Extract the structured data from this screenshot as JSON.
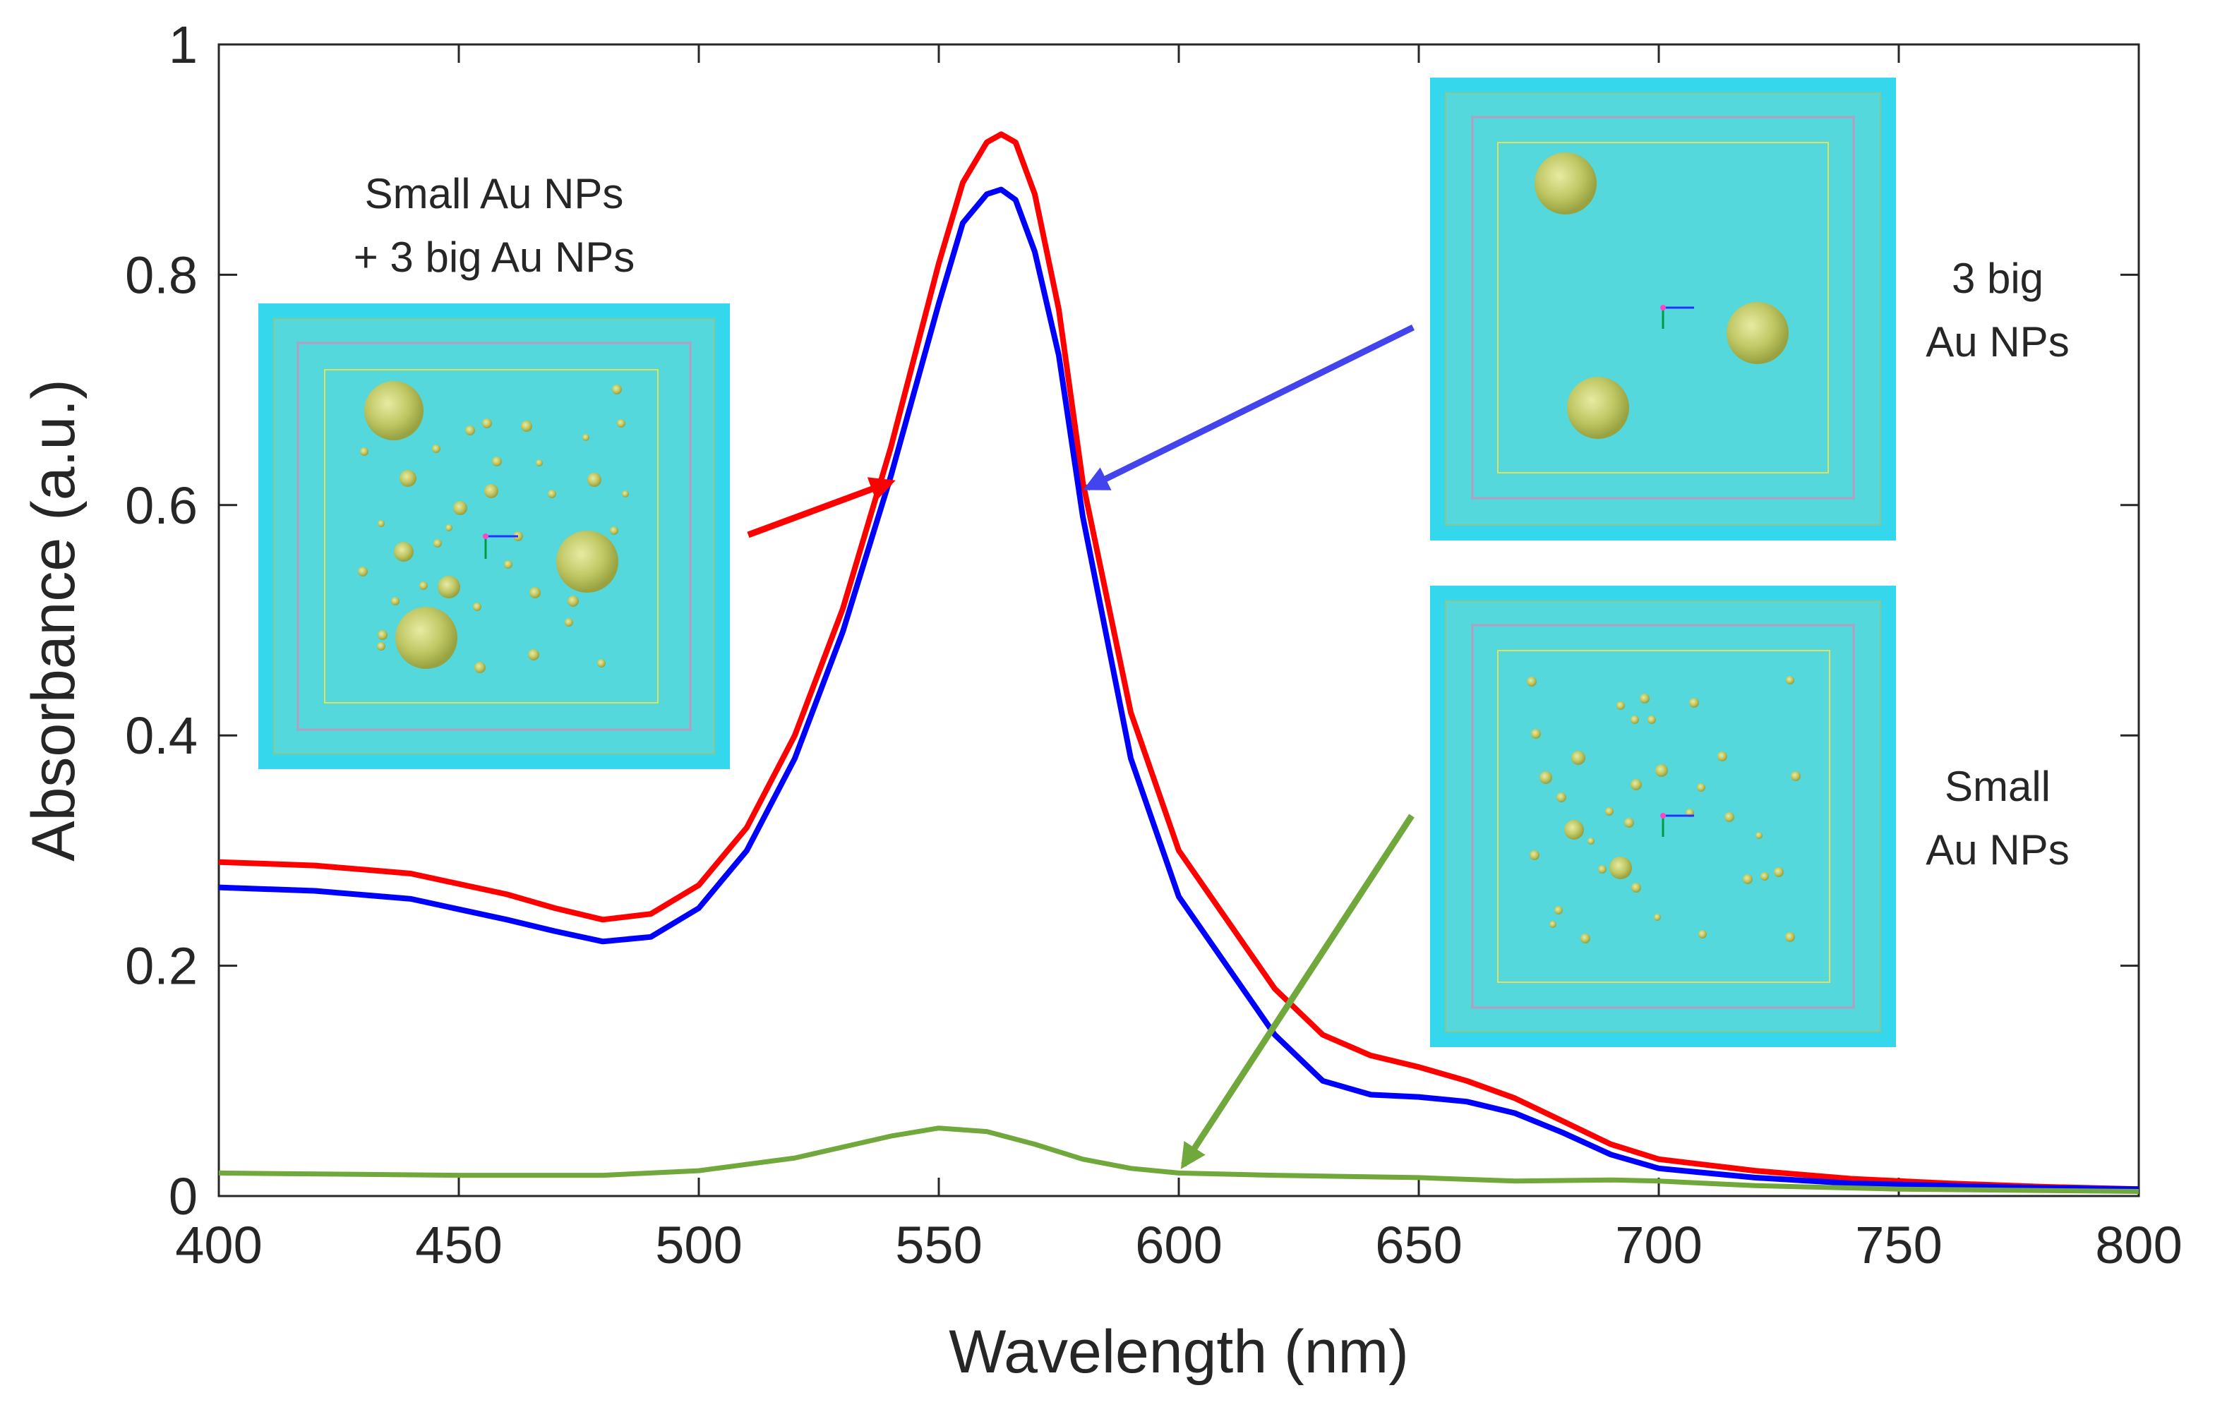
{
  "chart_data": {
    "type": "line",
    "title": "",
    "xlabel": "Wavelength (nm)",
    "ylabel": "Absorbance (a.u.)",
    "xlim": [
      400,
      800
    ],
    "ylim": [
      0,
      1
    ],
    "xticks": [
      400,
      450,
      500,
      550,
      600,
      650,
      700,
      750,
      800
    ],
    "yticks": [
      0,
      0.2,
      0.4,
      0.6,
      0.8,
      1
    ],
    "ytick_labels": [
      "0",
      "0.2",
      "0.4",
      "0.6",
      "0.8",
      "1"
    ],
    "grid": false,
    "series": [
      {
        "name": "Small Au NPs + 3 big Au NPs",
        "color": "#ff0000",
        "x": [
          400,
          420,
          440,
          460,
          470,
          480,
          490,
          500,
          510,
          520,
          530,
          540,
          550,
          555,
          560,
          563,
          566,
          570,
          575,
          580,
          590,
          600,
          610,
          620,
          630,
          640,
          650,
          660,
          670,
          680,
          690,
          700,
          720,
          740,
          760,
          780,
          800
        ],
        "y": [
          0.29,
          0.287,
          0.28,
          0.262,
          0.25,
          0.24,
          0.245,
          0.27,
          0.32,
          0.4,
          0.51,
          0.65,
          0.81,
          0.88,
          0.915,
          0.922,
          0.915,
          0.87,
          0.77,
          0.62,
          0.42,
          0.3,
          0.24,
          0.18,
          0.14,
          0.122,
          0.112,
          0.1,
          0.085,
          0.065,
          0.045,
          0.032,
          0.022,
          0.015,
          0.011,
          0.008,
          0.006
        ]
      },
      {
        "name": "3 big Au NPs",
        "color": "#0000ff",
        "x": [
          400,
          420,
          440,
          460,
          470,
          480,
          490,
          500,
          510,
          520,
          530,
          540,
          550,
          555,
          560,
          563,
          566,
          570,
          575,
          580,
          590,
          600,
          610,
          620,
          630,
          640,
          650,
          660,
          670,
          680,
          690,
          700,
          720,
          740,
          760,
          780,
          800
        ],
        "y": [
          0.268,
          0.265,
          0.258,
          0.24,
          0.23,
          0.221,
          0.225,
          0.25,
          0.3,
          0.38,
          0.49,
          0.625,
          0.775,
          0.845,
          0.87,
          0.874,
          0.865,
          0.82,
          0.73,
          0.59,
          0.38,
          0.26,
          0.2,
          0.14,
          0.1,
          0.088,
          0.086,
          0.082,
          0.072,
          0.055,
          0.036,
          0.024,
          0.016,
          0.011,
          0.009,
          0.007,
          0.006
        ]
      },
      {
        "name": "Small Au NPs",
        "color": "#70a83c",
        "x": [
          400,
          450,
          480,
          500,
          520,
          540,
          550,
          560,
          570,
          580,
          590,
          600,
          620,
          650,
          670,
          690,
          700,
          720,
          750,
          800
        ],
        "y": [
          0.02,
          0.018,
          0.018,
          0.022,
          0.033,
          0.052,
          0.059,
          0.056,
          0.045,
          0.032,
          0.024,
          0.02,
          0.018,
          0.016,
          0.013,
          0.014,
          0.013,
          0.009,
          0.006,
          0.004
        ]
      }
    ],
    "insets": [
      {
        "name": "mixed",
        "label_lines": [
          "Small Au NPs",
          "+ 3 big Au NPs"
        ],
        "arrow_color": "#ff0000",
        "arrow_target_wavelength": 540,
        "arrow_target_absorbance": 0.62
      },
      {
        "name": "big",
        "label_lines": [
          "3 big",
          "Au NPs"
        ],
        "arrow_color": "#4444ee",
        "arrow_target_wavelength": 581,
        "arrow_target_absorbance": 0.615
      },
      {
        "name": "small",
        "label_lines": [
          "Small",
          "Au NPs"
        ],
        "arrow_color": "#70a83c",
        "arrow_target_wavelength": 601,
        "arrow_target_absorbance": 0.027
      }
    ]
  }
}
